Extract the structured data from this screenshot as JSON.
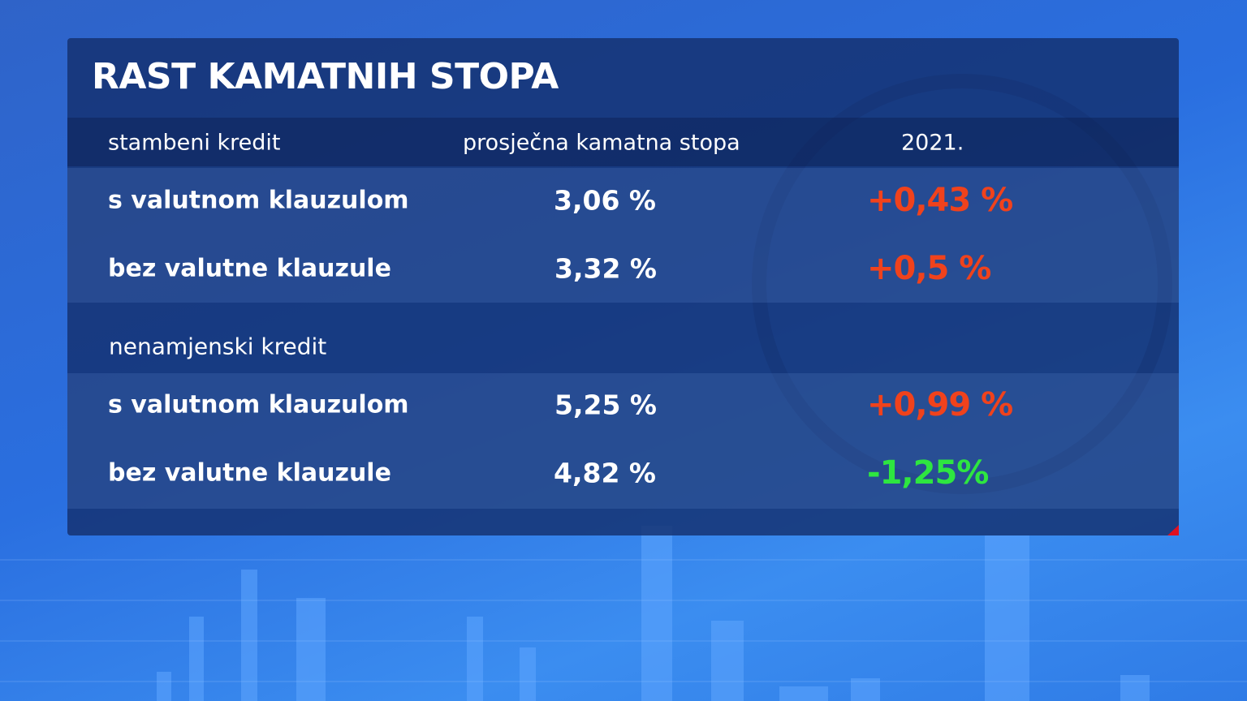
{
  "title": "RAST KAMATNIH STOPA",
  "table": {
    "columns": [
      "prosječna kamatna stopa",
      "2021."
    ],
    "groups": [
      {
        "label": "stambeni kredit",
        "rows": [
          [
            "s valutnom klauzulom",
            "3,06 %",
            "+0,43 %"
          ],
          [
            "bez valutne klauzule",
            "3,32 %",
            "+0,5 %"
          ]
        ]
      },
      {
        "label": "nenamjenski kredit",
        "rows": [
          [
            "s valutnom klauzulom",
            "5,25 %",
            "+0,99 %"
          ],
          [
            "bez valutne klauzule",
            "4,82 %",
            "-1,25%"
          ]
        ]
      }
    ]
  }
}
